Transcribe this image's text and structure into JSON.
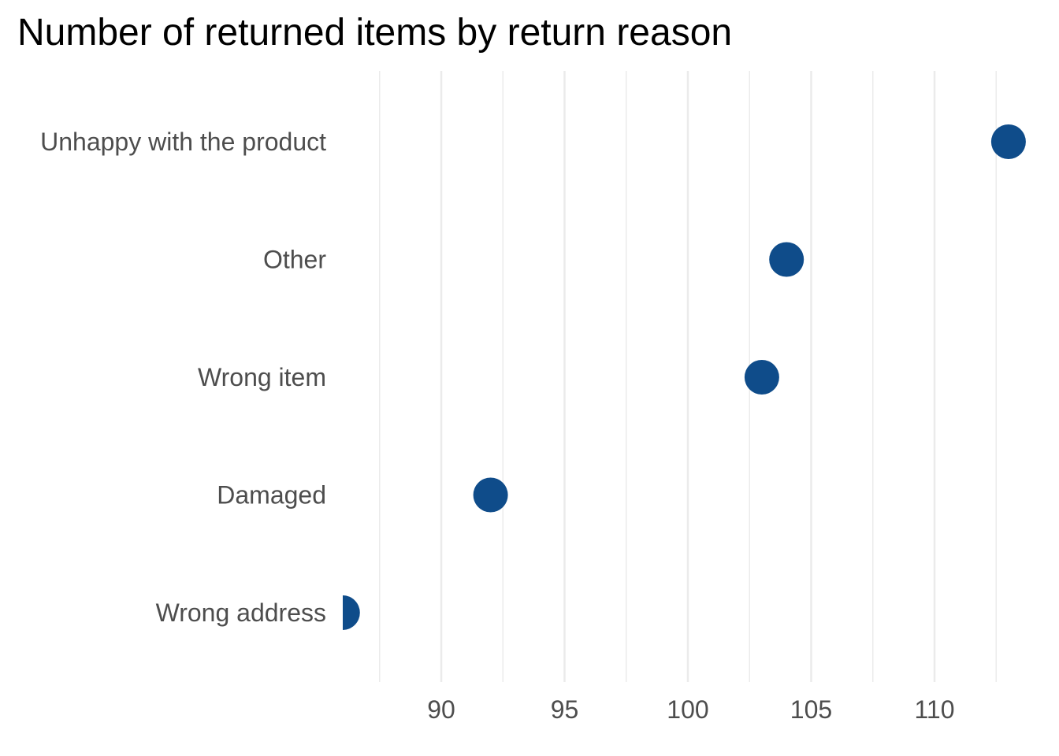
{
  "chart_data": {
    "type": "scatter",
    "title": "Number of returned items by return reason",
    "xlabel": "",
    "ylabel": "",
    "categories": [
      "Unhappy with the product",
      "Other",
      "Wrong item",
      "Damaged",
      "Wrong address"
    ],
    "values": [
      113,
      104,
      103,
      92,
      86
    ],
    "x_ticks": [
      90,
      95,
      100,
      105,
      110
    ],
    "xlim": [
      86,
      113.5
    ],
    "grid": true,
    "legend": "none",
    "point_color": "#0f4c8a",
    "grid_color": "#ebebeb"
  }
}
